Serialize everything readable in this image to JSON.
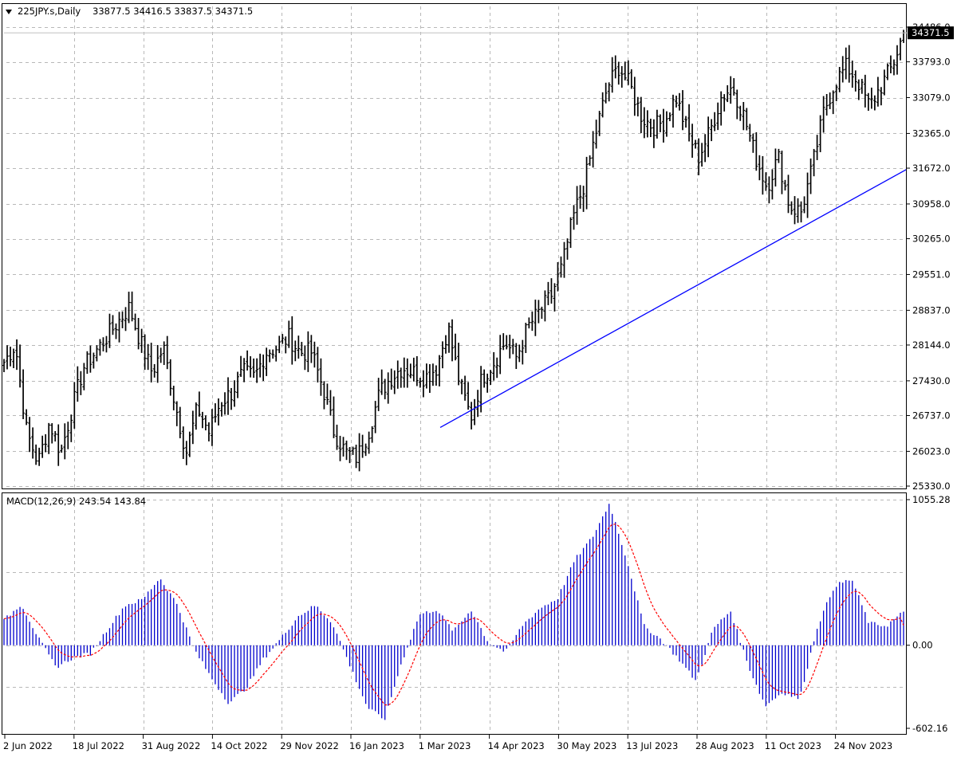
{
  "header": {
    "symbol": "225JPY.s,Daily",
    "ohlc": "33877.5 34416.5 33837.5 34371.5"
  },
  "price_axis": {
    "ticks": [
      "34486.0",
      "33793.0",
      "33079.0",
      "32365.0",
      "31672.0",
      "30958.0",
      "30265.0",
      "29551.0",
      "28837.0",
      "28144.0",
      "27430.0",
      "26737.0",
      "26023.0",
      "25330.0"
    ],
    "current_label": "34371.5"
  },
  "macd": {
    "label": "MACD(12,26,9) 243.54 143.84",
    "axis_ticks": [
      "1055.28",
      "0.00",
      "-602.16"
    ]
  },
  "time_axis": [
    "2 Jun 2022",
    "18 Jul 2022",
    "31 Aug 2022",
    "14 Oct 2022",
    "29 Nov 2022",
    "16 Jan 2023",
    "1 Mar 2023",
    "14 Apr 2023",
    "30 May 2023",
    "13 Jul 2023",
    "28 Aug 2023",
    "11 Oct 2023",
    "24 Nov 2023"
  ],
  "colors": {
    "bars": "#000000",
    "histogram": "#0000cd",
    "signal": "#ff0000",
    "trendline": "#0000ff",
    "grid": "#c0c0c0"
  },
  "chart_data": [
    {
      "type": "ohlc",
      "symbol": "225JPY.s",
      "timeframe": "Daily",
      "x_range": [
        "2 Jun 2022",
        "Dec 2023"
      ],
      "ylim": [
        25330,
        34486
      ],
      "current": 34371.5,
      "close_path": [
        [
          "2 Jun 2022",
          27800
        ],
        [
          "Jun 2022",
          28150
        ],
        [
          "Jun 2022",
          26400
        ],
        [
          "Jun 2022",
          25800
        ],
        [
          "Jul 2022",
          26600
        ],
        [
          "Jul 2022",
          26000
        ],
        [
          "Jul 2022",
          26900
        ],
        [
          "Jul 2022",
          27700
        ],
        [
          "18 Jul 2022",
          28000
        ],
        [
          "Jul 2022",
          28300
        ],
        [
          "Aug 2022",
          28600
        ],
        [
          "Aug 2022",
          28900
        ],
        [
          "Aug 2022",
          28200
        ],
        [
          "Aug 2022",
          27600
        ],
        [
          "31 Aug 2022",
          28100
        ],
        [
          "Sep 2022",
          27000
        ],
        [
          "Sep 2022",
          26000
        ],
        [
          "Sep 2022",
          26900
        ],
        [
          "Sep 2022",
          26400
        ],
        [
          "Oct 2022",
          27000
        ],
        [
          "Oct 2022",
          27200
        ],
        [
          "14 Oct 2022",
          27600
        ],
        [
          "Oct 2022",
          27500
        ],
        [
          "Oct 2022",
          28000
        ],
        [
          "Nov 2022",
          28100
        ],
        [
          "Nov 2022",
          28300
        ],
        [
          "Nov 2022",
          28000
        ],
        [
          "29 Nov 2022",
          28000
        ],
        [
          "Dec 2022",
          27300
        ],
        [
          "Dec 2022",
          26400
        ],
        [
          "Dec 2022",
          26000
        ],
        [
          "Dec 2022",
          25900
        ],
        [
          "Jan 2023",
          26400
        ],
        [
          "Jan 2023",
          27200
        ],
        [
          "16 Jan 2023",
          27500
        ],
        [
          "Jan 2023",
          27700
        ],
        [
          "Feb 2023",
          27600
        ],
        [
          "Feb 2023",
          27500
        ],
        [
          "Feb 2023",
          27700
        ],
        [
          "Feb 2023",
          28500
        ],
        [
          "1 Mar 2023",
          27400
        ],
        [
          "Mar 2023",
          26700
        ],
        [
          "Mar 2023",
          27500
        ],
        [
          "Mar 2023",
          27800
        ],
        [
          "Mar 2023",
          28200
        ],
        [
          "Apr 2023",
          27900
        ],
        [
          "14 Apr 2023",
          28500
        ],
        [
          "Apr 2023",
          28800
        ],
        [
          "May 2023",
          29100
        ],
        [
          "May 2023",
          29700
        ],
        [
          "May 2023",
          30700
        ],
        [
          "May 2023",
          31400
        ],
        [
          "30 May 2023",
          32400
        ],
        [
          "Jun 2023",
          33300
        ],
        [
          "Jun 2023",
          33700
        ],
        [
          "Jun 2023",
          33300
        ],
        [
          "Jul 2023",
          32700
        ],
        [
          "13 Jul 2023",
          32500
        ],
        [
          "Jul 2023",
          32600
        ],
        [
          "Jul 2023",
          33100
        ],
        [
          "Aug 2023",
          32400
        ],
        [
          "Aug 2023",
          31900
        ],
        [
          "28 Aug 2023",
          32400
        ],
        [
          "Sep 2023",
          33100
        ],
        [
          "Sep 2023",
          33300
        ],
        [
          "Sep 2023",
          32700
        ],
        [
          "Sep 2023",
          31900
        ],
        [
          "11 Oct 2023",
          31300
        ],
        [
          "Oct 2023",
          31900
        ],
        [
          "Oct 2023",
          30900
        ],
        [
          "Nov 2023",
          30800
        ],
        [
          "Nov 2023",
          31700
        ],
        [
          "Nov 2023",
          32800
        ],
        [
          "24 Nov 2023",
          33400
        ],
        [
          "Nov 2023",
          33700
        ],
        [
          "Dec 2023",
          33400
        ],
        [
          "Dec 2023",
          32900
        ],
        [
          "Dec 2023",
          33300
        ],
        [
          "Dec 2023",
          33700
        ],
        [
          "Dec 2023",
          34371.5
        ]
      ],
      "trendline": {
        "from": [
          "Mar 2023",
          26500
        ],
        "to": [
          "Dec 2023",
          31650
        ]
      }
    },
    {
      "type": "bar",
      "name": "MACD(12,26,9)",
      "macd": 243.54,
      "signal": 143.84,
      "ylim": [
        -602.16,
        1055.28
      ],
      "macd_path": [
        [
          "2 Jun 2022",
          180
        ],
        [
          "Jun 2022",
          300
        ],
        [
          "Jun 2022",
          50
        ],
        [
          "Jun 2022",
          -160
        ],
        [
          "Jul 2022",
          -90
        ],
        [
          "Jul 2022",
          -60
        ],
        [
          "Jul 2022",
          120
        ],
        [
          "18 Jul 2022",
          290
        ],
        [
          "Jul 2022",
          330
        ],
        [
          "Aug 2022",
          490
        ],
        [
          "Aug 2022",
          300
        ],
        [
          "31 Aug 2022",
          -30
        ],
        [
          "Sep 2022",
          -240
        ],
        [
          "Sep 2022",
          -420
        ],
        [
          "Sep 2022",
          -310
        ],
        [
          "14 Oct 2022",
          -100
        ],
        [
          "Oct 2022",
          50
        ],
        [
          "Nov 2022",
          210
        ],
        [
          "Nov 2022",
          290
        ],
        [
          "29 Nov 2022",
          160
        ],
        [
          "Dec 2022",
          -150
        ],
        [
          "Dec 2022",
          -450
        ],
        [
          "Jan 2023",
          -540
        ],
        [
          "16 Jan 2023",
          -120
        ],
        [
          "Jan 2023",
          220
        ],
        [
          "Feb 2023",
          260
        ],
        [
          "Feb 2023",
          100
        ],
        [
          "1 Mar 2023",
          260
        ],
        [
          "Mar 2023",
          20
        ],
        [
          "Mar 2023",
          -50
        ],
        [
          "14 Apr 2023",
          150
        ],
        [
          "Apr 2023",
          270
        ],
        [
          "May 2023",
          340
        ],
        [
          "May 2023",
          620
        ],
        [
          "30 May 2023",
          780
        ],
        [
          "Jun 2023",
          1030
        ],
        [
          "Jun 2023",
          620
        ],
        [
          "13 Jul 2023",
          140
        ],
        [
          "Jul 2023",
          40
        ],
        [
          "Aug 2023",
          -100
        ],
        [
          "28 Aug 2023",
          -260
        ],
        [
          "Aug 2023",
          120
        ],
        [
          "Sep 2023",
          250
        ],
        [
          "Sep 2023",
          -140
        ],
        [
          "11 Oct 2023",
          -440
        ],
        [
          "Oct 2023",
          -340
        ],
        [
          "Oct 2023",
          -390
        ],
        [
          "Nov 2023",
          130
        ],
        [
          "Nov 2023",
          430
        ],
        [
          "24 Nov 2023",
          480
        ],
        [
          "Dec 2023",
          160
        ],
        [
          "Dec 2023",
          140
        ],
        [
          "Dec 2023",
          243.54
        ]
      ]
    }
  ]
}
